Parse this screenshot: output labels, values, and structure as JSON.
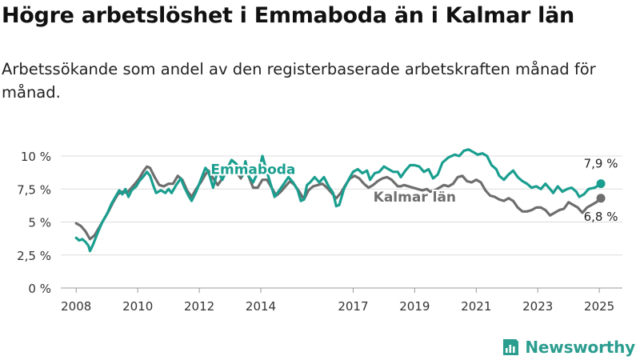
{
  "title": "Högre arbetslöshet i Emmaboda än i Kalmar län",
  "subtitle": "Arbetssökande som andel av den registerbaserade arbetskraften månad för månad.",
  "brand": {
    "name": "Newsworthy",
    "logo_icon": "newsworthy-bar-chart-logo-icon",
    "color": "#2a9d8f"
  },
  "chart_data": {
    "type": "line",
    "xlim": [
      2007.5,
      2025.75
    ],
    "ylim": [
      0,
      10
    ],
    "y_ticks": [
      0,
      2.5,
      5,
      7.5,
      10
    ],
    "y_tick_labels": [
      "0 %",
      "2,5 %",
      "5 %",
      "7,5 %",
      "10 %"
    ],
    "x_ticks": [
      2008,
      2010,
      2012,
      2014,
      2017,
      2019,
      2021,
      2023,
      2025
    ],
    "x_tick_labels": [
      "2008",
      "2010",
      "2012",
      "2014",
      "2017",
      "2019",
      "2021",
      "2023",
      "2025"
    ],
    "grid": "horizontal",
    "series": [
      {
        "name": "Emmaboda",
        "color": "#1a9e8f",
        "end_label": "7,9 %",
        "points": [
          [
            2008.0,
            3.8
          ],
          [
            2008.1,
            3.6
          ],
          [
            2008.2,
            3.7
          ],
          [
            2008.3,
            3.5
          ],
          [
            2008.4,
            3.2
          ],
          [
            2008.45,
            2.8
          ],
          [
            2008.55,
            3.3
          ],
          [
            2008.7,
            4.2
          ],
          [
            2008.85,
            5.0
          ],
          [
            2009.0,
            5.6
          ],
          [
            2009.15,
            6.4
          ],
          [
            2009.3,
            7.0
          ],
          [
            2009.4,
            7.4
          ],
          [
            2009.5,
            7.1
          ],
          [
            2009.6,
            7.5
          ],
          [
            2009.7,
            6.9
          ],
          [
            2009.8,
            7.4
          ],
          [
            2009.95,
            7.7
          ],
          [
            2010.05,
            8.1
          ],
          [
            2010.2,
            8.5
          ],
          [
            2010.3,
            8.8
          ],
          [
            2010.4,
            8.5
          ],
          [
            2010.5,
            7.8
          ],
          [
            2010.6,
            7.2
          ],
          [
            2010.75,
            7.4
          ],
          [
            2010.9,
            7.2
          ],
          [
            2011.0,
            7.5
          ],
          [
            2011.1,
            7.2
          ],
          [
            2011.25,
            7.8
          ],
          [
            2011.4,
            8.3
          ],
          [
            2011.5,
            7.7
          ],
          [
            2011.65,
            7.0
          ],
          [
            2011.75,
            6.6
          ],
          [
            2011.9,
            7.3
          ],
          [
            2012.0,
            7.9
          ],
          [
            2012.1,
            8.5
          ],
          [
            2012.2,
            9.1
          ],
          [
            2012.3,
            8.8
          ],
          [
            2012.45,
            7.6
          ],
          [
            2012.6,
            8.9
          ],
          [
            2012.75,
            8.2
          ],
          [
            2012.9,
            9.0
          ],
          [
            2013.05,
            9.7
          ],
          [
            2013.2,
            9.4
          ],
          [
            2013.4,
            8.5
          ],
          [
            2013.5,
            9.6
          ],
          [
            2013.6,
            8.5
          ],
          [
            2013.75,
            8.0
          ],
          [
            2013.95,
            9.0
          ],
          [
            2014.05,
            10.0
          ],
          [
            2014.15,
            9.2
          ],
          [
            2014.3,
            8.0
          ],
          [
            2014.45,
            6.9
          ],
          [
            2014.6,
            7.4
          ],
          [
            2014.75,
            7.9
          ],
          [
            2014.9,
            8.4
          ],
          [
            2015.05,
            8.0
          ],
          [
            2015.2,
            7.4
          ],
          [
            2015.3,
            6.6
          ],
          [
            2015.4,
            6.7
          ],
          [
            2015.5,
            7.8
          ],
          [
            2015.6,
            8.0
          ],
          [
            2015.75,
            8.4
          ],
          [
            2015.9,
            8.0
          ],
          [
            2016.05,
            8.4
          ],
          [
            2016.2,
            7.7
          ],
          [
            2016.35,
            7.2
          ],
          [
            2016.45,
            6.2
          ],
          [
            2016.55,
            6.3
          ],
          [
            2016.7,
            7.5
          ],
          [
            2016.85,
            8.2
          ],
          [
            2017.0,
            8.8
          ],
          [
            2017.15,
            9.0
          ],
          [
            2017.3,
            8.7
          ],
          [
            2017.45,
            8.9
          ],
          [
            2017.55,
            8.2
          ],
          [
            2017.7,
            8.7
          ],
          [
            2017.85,
            8.8
          ],
          [
            2018.0,
            9.2
          ],
          [
            2018.15,
            9.0
          ],
          [
            2018.3,
            8.8
          ],
          [
            2018.45,
            8.8
          ],
          [
            2018.55,
            8.4
          ],
          [
            2018.7,
            8.9
          ],
          [
            2018.85,
            9.3
          ],
          [
            2019.0,
            9.3
          ],
          [
            2019.15,
            9.2
          ],
          [
            2019.3,
            8.8
          ],
          [
            2019.45,
            9.0
          ],
          [
            2019.6,
            8.3
          ],
          [
            2019.75,
            8.6
          ],
          [
            2019.9,
            9.5
          ],
          [
            2020.1,
            9.9
          ],
          [
            2020.3,
            10.1
          ],
          [
            2020.45,
            10.0
          ],
          [
            2020.6,
            10.4
          ],
          [
            2020.75,
            10.5
          ],
          [
            2020.9,
            10.3
          ],
          [
            2021.05,
            10.1
          ],
          [
            2021.2,
            10.2
          ],
          [
            2021.35,
            10.0
          ],
          [
            2021.5,
            9.3
          ],
          [
            2021.65,
            9.0
          ],
          [
            2021.75,
            8.5
          ],
          [
            2021.9,
            8.2
          ],
          [
            2022.05,
            8.6
          ],
          [
            2022.2,
            8.9
          ],
          [
            2022.35,
            8.4
          ],
          [
            2022.5,
            8.1
          ],
          [
            2022.65,
            7.9
          ],
          [
            2022.8,
            7.6
          ],
          [
            2022.95,
            7.7
          ],
          [
            2023.1,
            7.5
          ],
          [
            2023.25,
            7.9
          ],
          [
            2023.4,
            7.5
          ],
          [
            2023.5,
            7.2
          ],
          [
            2023.65,
            7.7
          ],
          [
            2023.8,
            7.3
          ],
          [
            2023.95,
            7.5
          ],
          [
            2024.1,
            7.6
          ],
          [
            2024.25,
            7.3
          ],
          [
            2024.35,
            6.9
          ],
          [
            2024.5,
            7.1
          ],
          [
            2024.65,
            7.5
          ],
          [
            2024.85,
            7.6
          ],
          [
            2025.05,
            7.9
          ]
        ]
      },
      {
        "name": "Kalmar län",
        "color": "#6e6e6e",
        "end_label": "6,8 %",
        "points": [
          [
            2008.0,
            4.9
          ],
          [
            2008.15,
            4.7
          ],
          [
            2008.3,
            4.3
          ],
          [
            2008.45,
            3.7
          ],
          [
            2008.6,
            4.0
          ],
          [
            2008.75,
            4.6
          ],
          [
            2008.9,
            5.2
          ],
          [
            2009.05,
            5.8
          ],
          [
            2009.2,
            6.5
          ],
          [
            2009.35,
            7.1
          ],
          [
            2009.5,
            7.3
          ],
          [
            2009.65,
            7.2
          ],
          [
            2009.8,
            7.6
          ],
          [
            2009.95,
            8.0
          ],
          [
            2010.05,
            8.3
          ],
          [
            2010.2,
            8.9
          ],
          [
            2010.3,
            9.2
          ],
          [
            2010.4,
            9.1
          ],
          [
            2010.55,
            8.4
          ],
          [
            2010.7,
            7.8
          ],
          [
            2010.85,
            7.7
          ],
          [
            2011.0,
            7.9
          ],
          [
            2011.15,
            7.9
          ],
          [
            2011.3,
            8.5
          ],
          [
            2011.45,
            8.2
          ],
          [
            2011.6,
            7.4
          ],
          [
            2011.75,
            6.9
          ],
          [
            2011.9,
            7.5
          ],
          [
            2012.05,
            8.0
          ],
          [
            2012.2,
            8.6
          ],
          [
            2012.3,
            8.9
          ],
          [
            2012.45,
            8.3
          ],
          [
            2012.6,
            7.8
          ],
          [
            2012.75,
            8.3
          ],
          [
            2012.9,
            8.8
          ],
          [
            2013.05,
            8.6
          ],
          [
            2013.2,
            8.8
          ],
          [
            2013.35,
            8.3
          ],
          [
            2013.5,
            8.9
          ],
          [
            2013.6,
            8.5
          ],
          [
            2013.75,
            7.6
          ],
          [
            2013.9,
            7.6
          ],
          [
            2014.05,
            8.2
          ],
          [
            2014.2,
            8.2
          ],
          [
            2014.35,
            7.6
          ],
          [
            2014.5,
            7.0
          ],
          [
            2014.65,
            7.3
          ],
          [
            2014.8,
            7.7
          ],
          [
            2014.95,
            8.1
          ],
          [
            2015.1,
            7.8
          ],
          [
            2015.25,
            7.3
          ],
          [
            2015.4,
            6.7
          ],
          [
            2015.55,
            7.4
          ],
          [
            2015.7,
            7.7
          ],
          [
            2015.85,
            7.8
          ],
          [
            2016.0,
            7.9
          ],
          [
            2016.15,
            7.6
          ],
          [
            2016.3,
            7.2
          ],
          [
            2016.45,
            6.8
          ],
          [
            2016.6,
            7.2
          ],
          [
            2016.75,
            7.8
          ],
          [
            2016.9,
            8.3
          ],
          [
            2017.05,
            8.5
          ],
          [
            2017.2,
            8.3
          ],
          [
            2017.35,
            7.9
          ],
          [
            2017.5,
            7.6
          ],
          [
            2017.65,
            7.8
          ],
          [
            2017.8,
            8.1
          ],
          [
            2017.95,
            8.3
          ],
          [
            2018.1,
            8.4
          ],
          [
            2018.25,
            8.2
          ],
          [
            2018.45,
            7.7
          ],
          [
            2018.55,
            7.7
          ],
          [
            2018.65,
            7.8
          ],
          [
            2018.8,
            7.7
          ],
          [
            2018.95,
            7.6
          ],
          [
            2019.1,
            7.5
          ],
          [
            2019.25,
            7.4
          ],
          [
            2019.4,
            7.5
          ],
          [
            2019.5,
            7.3
          ],
          [
            2019.65,
            7.4
          ],
          [
            2019.8,
            7.6
          ],
          [
            2019.95,
            7.8
          ],
          [
            2020.1,
            7.7
          ],
          [
            2020.25,
            7.9
          ],
          [
            2020.4,
            8.4
          ],
          [
            2020.55,
            8.5
          ],
          [
            2020.7,
            8.1
          ],
          [
            2020.85,
            8.0
          ],
          [
            2021.0,
            8.2
          ],
          [
            2021.15,
            8.0
          ],
          [
            2021.3,
            7.4
          ],
          [
            2021.45,
            7.0
          ],
          [
            2021.6,
            6.9
          ],
          [
            2021.75,
            6.7
          ],
          [
            2021.9,
            6.6
          ],
          [
            2022.05,
            6.8
          ],
          [
            2022.2,
            6.6
          ],
          [
            2022.35,
            6.1
          ],
          [
            2022.5,
            5.8
          ],
          [
            2022.65,
            5.8
          ],
          [
            2022.8,
            5.9
          ],
          [
            2022.95,
            6.1
          ],
          [
            2023.1,
            6.1
          ],
          [
            2023.25,
            5.9
          ],
          [
            2023.4,
            5.5
          ],
          [
            2023.55,
            5.7
          ],
          [
            2023.7,
            5.9
          ],
          [
            2023.85,
            6.0
          ],
          [
            2024.0,
            6.5
          ],
          [
            2024.15,
            6.3
          ],
          [
            2024.3,
            6.1
          ],
          [
            2024.45,
            5.7
          ],
          [
            2024.6,
            6.1
          ],
          [
            2024.75,
            6.3
          ],
          [
            2024.9,
            6.5
          ],
          [
            2025.05,
            6.8
          ]
        ]
      }
    ],
    "annotations": [
      {
        "text": "Emmaboda",
        "series": "Emmaboda",
        "x": 2013.75,
        "y": 9.0,
        "color": "#1a9e8f"
      },
      {
        "text": "Kalmar län",
        "series": "Kalmar län",
        "x": 2019.0,
        "y": 6.9,
        "color": "#6e6e6e"
      }
    ]
  }
}
